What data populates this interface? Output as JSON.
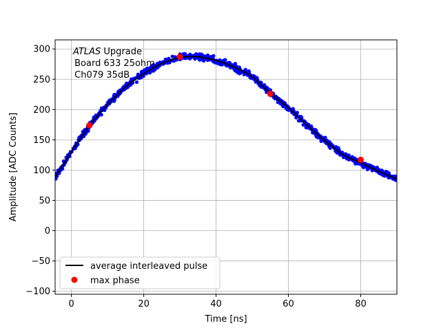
{
  "chart_data": {
    "type": "scatter",
    "title": "",
    "xlabel": "Time [ns]",
    "ylabel": "Amplitude [ADC Counts]",
    "xlim": [
      -4.5,
      90
    ],
    "ylim": [
      -105,
      315
    ],
    "xticks": [
      0,
      20,
      40,
      60,
      80
    ],
    "yticks": [
      -100,
      -50,
      0,
      50,
      100,
      150,
      200,
      250,
      300
    ],
    "grid": true,
    "annotation": {
      "experiment": "ATLAS",
      "experiment_suffix": " Upgrade",
      "line2": " Board 633 25ohm",
      "line3": " Ch079 35dB"
    },
    "legend": {
      "placement": "lower-left",
      "entries": [
        {
          "label": "average interleaved pulse",
          "style": "line",
          "color": "#000000"
        },
        {
          "label": "max phase",
          "style": "marker",
          "color": "#ff0000"
        }
      ]
    },
    "series": [
      {
        "style": "line",
        "color": "#000000",
        "x": [
          -4.5,
          0,
          5,
          10,
          15,
          20,
          25,
          30,
          35,
          40,
          45,
          50,
          55,
          60,
          65,
          70,
          75,
          80,
          85,
          90
        ],
        "y": [
          88,
          130,
          173,
          208,
          237,
          259,
          276,
          286,
          287,
          281,
          270,
          254,
          227,
          203,
          175,
          149,
          126,
          112,
          98,
          85
        ]
      },
      {
        "style": "scatter",
        "color": "#0000ff",
        "description_of_points": "dense interleaved samples around the average pulse",
        "x_range": [
          -4.5,
          90
        ],
        "point_count": 900,
        "spread": 5
      },
      {
        "style": "marker",
        "color": "#ff0000",
        "x": [
          5,
          30,
          55,
          80
        ],
        "y": [
          174,
          287,
          226,
          117
        ]
      }
    ]
  }
}
